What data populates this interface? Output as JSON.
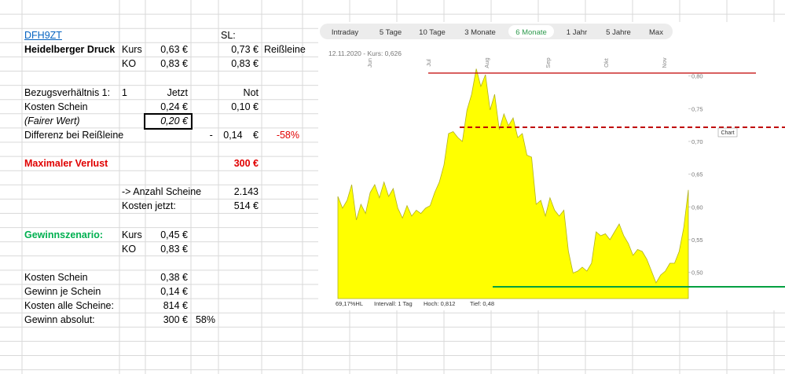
{
  "sheet": {
    "rows": [
      [
        null,
        null,
        null,
        null,
        null,
        null
      ],
      [
        null,
        null,
        null,
        null,
        null,
        null
      ],
      [
        "DFH9ZT",
        null,
        null,
        null,
        "SL:",
        null
      ],
      [
        "Heidelberger Druck",
        "Kurs",
        "0,63 €",
        null,
        "0,73 €",
        "Reißleine"
      ],
      [
        null,
        "KO",
        "0,83 €",
        null,
        "0,83 €",
        null
      ],
      [
        null,
        null,
        null,
        null,
        null,
        null
      ],
      [
        "Bezugsverhältnis 1:",
        "1",
        "Jetzt",
        null,
        "Not",
        null
      ],
      [
        "Kosten Schein",
        null,
        "0,24 €",
        null,
        "0,10 €",
        null
      ],
      [
        "(Fairer Wert)",
        null,
        "0,20 €",
        null,
        null,
        null
      ],
      [
        "Differenz bei Reißleine",
        null,
        null,
        null,
        "- 0,14 €",
        "-58%"
      ],
      [
        null,
        null,
        null,
        null,
        null,
        null
      ],
      [
        "Maximaler Verlust",
        null,
        null,
        null,
        "300 €",
        null
      ],
      [
        null,
        null,
        null,
        null,
        null,
        null
      ],
      [
        null,
        "-> Anzahl Scheine",
        null,
        null,
        "2.143",
        null
      ],
      [
        null,
        "Kosten jetzt:",
        null,
        null,
        "514 €",
        null
      ],
      [
        null,
        null,
        null,
        null,
        null,
        null
      ],
      [
        "Gewinnszenario:",
        "Kurs",
        "0,45 €",
        null,
        null,
        null
      ],
      [
        null,
        "KO",
        "0,83 €",
        null,
        null,
        null
      ],
      [
        null,
        null,
        null,
        null,
        null,
        null
      ],
      [
        "Kosten Schein",
        null,
        "0,38 €",
        null,
        null,
        null
      ],
      [
        "Gewinn je Schein",
        null,
        "0,14 €",
        null,
        null,
        null
      ],
      [
        "Kosten alle Scheine:",
        null,
        "814 €",
        null,
        null,
        null
      ],
      [
        "Gewinn absolut:",
        null,
        "300 €",
        "58%",
        null,
        null
      ]
    ]
  },
  "chart": {
    "tabs": [
      "Intraday",
      "5 Tage",
      "10 Tage",
      "3 Monate",
      "6 Monate",
      "1 Jahr",
      "5 Jahre",
      "Max"
    ],
    "active_tab": "6 Monate",
    "header": "12.11.2020  -  Kurs: 0,626",
    "months": [
      "Jun",
      "Jul",
      "Aug",
      "Sep",
      "Okt",
      "Nov"
    ],
    "ylim": [
      0.46,
      0.82
    ],
    "yticks": [
      {
        "value": 0.8,
        "label": "0,80"
      },
      {
        "value": 0.75,
        "label": "0,75"
      },
      {
        "value": 0.7,
        "label": "0,70"
      },
      {
        "value": 0.65,
        "label": "0,65"
      },
      {
        "value": 0.6,
        "label": "0,60"
      },
      {
        "value": 0.55,
        "label": "0,55"
      },
      {
        "value": 0.5,
        "label": "0,50"
      }
    ],
    "values": [
      0.616,
      0.598,
      0.61,
      0.634,
      0.58,
      0.604,
      0.59,
      0.622,
      0.634,
      0.614,
      0.638,
      0.616,
      0.628,
      0.598,
      0.583,
      0.602,
      0.586,
      0.595,
      0.59,
      0.598,
      0.602,
      0.622,
      0.638,
      0.664,
      0.712,
      0.715,
      0.706,
      0.7,
      0.748,
      0.772,
      0.811,
      0.784,
      0.802,
      0.748,
      0.772,
      0.718,
      0.742,
      0.724,
      0.736,
      0.706,
      0.712,
      0.679,
      0.676,
      0.604,
      0.61,
      0.586,
      0.614,
      0.595,
      0.586,
      0.595,
      0.532,
      0.499,
      0.502,
      0.508,
      0.502,
      0.514,
      0.562,
      0.556,
      0.559,
      0.55,
      0.562,
      0.574,
      0.556,
      0.544,
      0.526,
      0.535,
      0.532,
      0.52,
      0.502,
      0.484,
      0.496,
      0.502,
      0.514,
      0.514,
      0.532,
      0.568,
      0.626
    ],
    "chart_label": "Chart",
    "footer": [
      "69,17%HL",
      "Intervall: 1 Tag",
      "Hoch: 0,812",
      "Tief: 0,48"
    ]
  }
}
